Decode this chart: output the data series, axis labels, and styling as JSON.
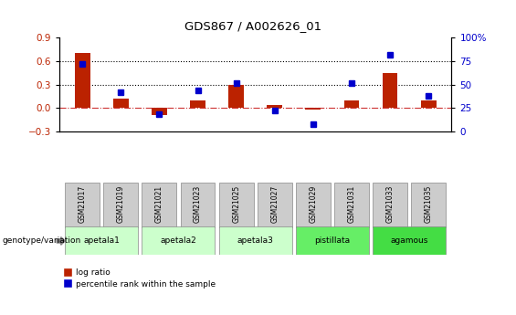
{
  "title": "GDS867 / A002626_01",
  "samples": [
    "GSM21017",
    "GSM21019",
    "GSM21021",
    "GSM21023",
    "GSM21025",
    "GSM21027",
    "GSM21029",
    "GSM21031",
    "GSM21033",
    "GSM21035"
  ],
  "log_ratio": [
    0.71,
    0.12,
    -0.09,
    0.1,
    0.3,
    0.04,
    -0.02,
    0.1,
    0.45,
    0.1
  ],
  "percentile_rank": [
    72,
    42,
    18,
    44,
    52,
    22,
    8,
    52,
    82,
    38
  ],
  "group_defs": [
    {
      "label": "apetala1",
      "xstart": 0,
      "xend": 1,
      "color": "#ccffcc"
    },
    {
      "label": "apetala2",
      "xstart": 2,
      "xend": 3,
      "color": "#ccffcc"
    },
    {
      "label": "apetala3",
      "xstart": 4,
      "xend": 5,
      "color": "#ccffcc"
    },
    {
      "label": "pistillata",
      "xstart": 6,
      "xend": 7,
      "color": "#66ee66"
    },
    {
      "label": "agamous",
      "xstart": 8,
      "xend": 9,
      "color": "#44dd44"
    }
  ],
  "ylim_left": [
    -0.3,
    0.9
  ],
  "ylim_right": [
    0,
    100
  ],
  "yticks_left": [
    -0.3,
    0.0,
    0.3,
    0.6,
    0.9
  ],
  "yticks_right": [
    0,
    25,
    50,
    75,
    100
  ],
  "bar_color": "#bb2200",
  "point_color": "#0000cc",
  "grid_color": "#000000",
  "zero_line_color": "#cc3333",
  "bg_color": "#ffffff",
  "sample_box_color": "#cccccc",
  "genotype_label": "genotype/variation",
  "legend_log_ratio": "log ratio",
  "legend_percentile": "percentile rank within the sample"
}
